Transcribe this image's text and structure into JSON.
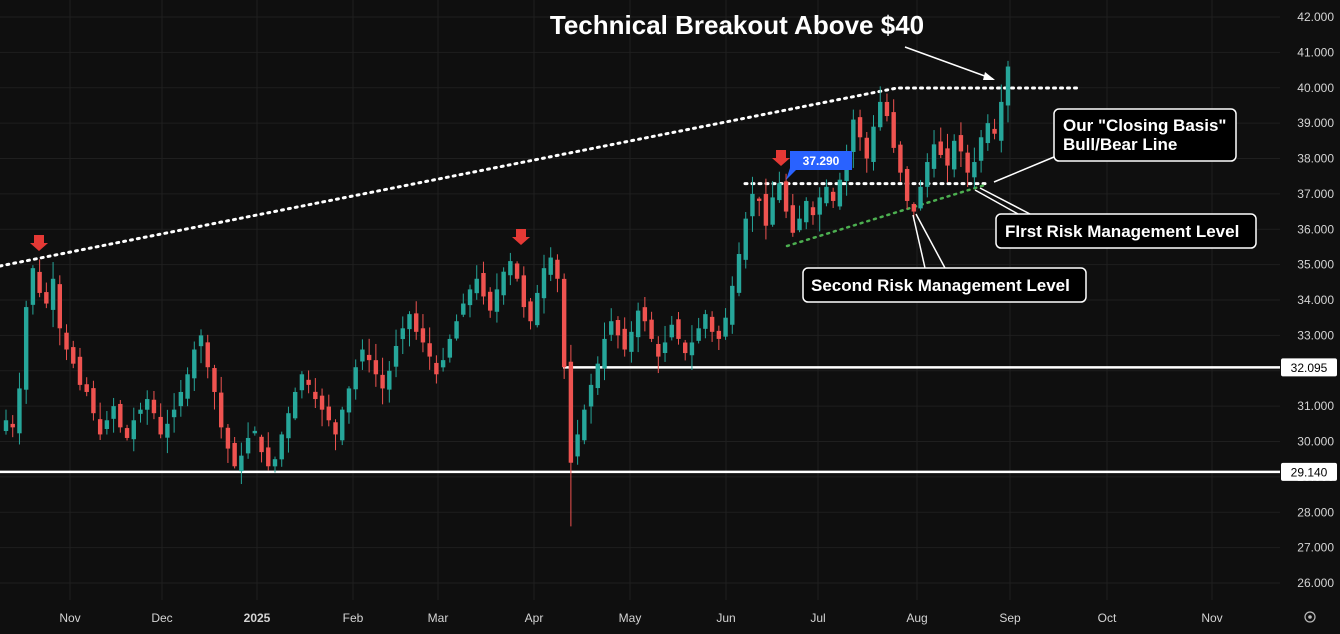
{
  "chart_data": {
    "type": "candlestick",
    "title": "Technical Breakout Above $40",
    "ylim": [
      25.5,
      42.3
    ],
    "y_ticks": [
      "26.000",
      "27.000",
      "28.000",
      "29.000",
      "30.000",
      "31.000",
      "32.000",
      "33.000",
      "34.000",
      "35.000",
      "36.000",
      "37.000",
      "38.000",
      "39.000",
      "40.000",
      "41.000",
      "42.000"
    ],
    "x_ticks": [
      "Nov",
      "Dec",
      "2025",
      "Feb",
      "Mar",
      "Apr",
      "May",
      "Jun",
      "Jul",
      "Aug",
      "Sep",
      "Oct",
      "Nov"
    ],
    "grid": true,
    "colors": {
      "background": "#0f0f0f",
      "up": "#26a69a",
      "down": "#ef5350",
      "grid": "#1f1f1f",
      "lines": "#ffffff",
      "green_line": "#4caf50",
      "blue_label": "#2962ff",
      "arrow_red": "#e53935"
    },
    "horizontal_levels": [
      {
        "value": 32.095,
        "label": "32.095"
      },
      {
        "value": 29.14,
        "label": "29.140"
      }
    ],
    "price_tag": {
      "value": 37.29,
      "label": "37.290"
    },
    "callouts": [
      "Our \"Closing Basis\" Bull/Bear Line",
      "First Risk Management Level",
      "Second Risk Management Level"
    ],
    "candles_daily_closes_approx": [
      30.6,
      30.4,
      31.5,
      33.8,
      34.9,
      34.2,
      33.9,
      34.6,
      33.2,
      32.6,
      32.2,
      31.6,
      31.4,
      30.8,
      30.2,
      30.6,
      31.0,
      30.4,
      30.1,
      30.6,
      30.9,
      31.2,
      30.8,
      30.2,
      30.5,
      30.9,
      31.4,
      31.9,
      32.6,
      33.0,
      32.1,
      31.4,
      30.4,
      29.8,
      29.3,
      29.6,
      30.1,
      30.3,
      29.7,
      29.3,
      29.5,
      30.2,
      30.8,
      31.4,
      31.9,
      31.6,
      31.2,
      30.9,
      30.6,
      30.2,
      30.9,
      31.5,
      32.1,
      32.6,
      32.3,
      31.9,
      31.5,
      32.0,
      32.7,
      33.2,
      33.6,
      33.1,
      32.8,
      32.4,
      31.9,
      32.3,
      32.9,
      33.4,
      33.9,
      34.3,
      34.6,
      34.1,
      33.7,
      34.3,
      34.8,
      35.1,
      34.6,
      33.8,
      33.4,
      34.2,
      34.9,
      35.2,
      34.6,
      32.1,
      29.4,
      30.2,
      30.9,
      31.6,
      32.2,
      32.9,
      33.4,
      33.0,
      32.6,
      33.1,
      33.7,
      33.4,
      32.9,
      32.4,
      32.8,
      33.3,
      32.9,
      32.5,
      32.8,
      33.2,
      33.6,
      33.1,
      32.9,
      33.5,
      34.4,
      35.3,
      36.3,
      37.0,
      36.8,
      36.1,
      36.9,
      37.3,
      36.5,
      35.9,
      36.3,
      36.8,
      36.4,
      36.9,
      37.2,
      36.8,
      37.4,
      38.2,
      39.1,
      38.6,
      38.0,
      38.9,
      39.6,
      39.2,
      38.3,
      37.6,
      36.8,
      36.5,
      37.2,
      37.9,
      38.4,
      38.1,
      37.8,
      38.5,
      38.2,
      37.6,
      37.9,
      38.6,
      39.0,
      38.7,
      39.6,
      40.6
    ]
  }
}
